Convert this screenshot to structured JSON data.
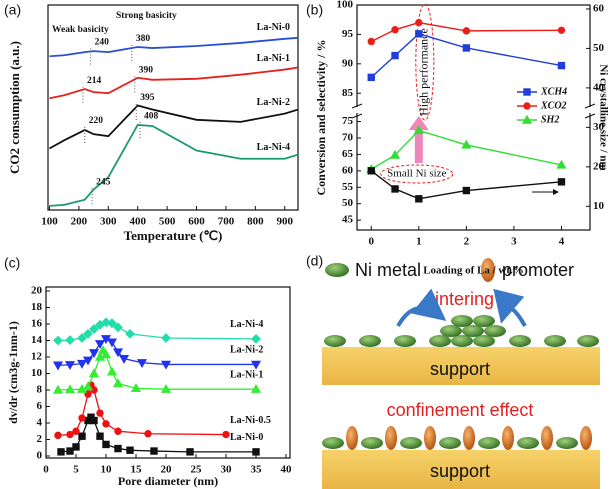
{
  "chart_data": [
    {
      "type": "line",
      "panel_label": "(a)",
      "xlabel": "Temperature (℃)",
      "ylabel": "CO2 consumption (a.u.)",
      "xlim": [
        95,
        945
      ],
      "xticks": [
        100,
        200,
        300,
        400,
        500,
        600,
        700,
        800,
        900
      ],
      "ylim": [
        0,
        10
      ],
      "x": [
        100,
        150,
        220,
        250,
        300,
        400,
        450,
        600,
        750,
        900,
        945
      ],
      "annotations": [
        "Weak basicity",
        "Strong basicity"
      ],
      "series": [
        {
          "name": "La-Ni-0",
          "color": "#2a4fd6",
          "values": [
            7.5,
            7.55,
            7.7,
            7.75,
            7.7,
            7.95,
            7.9,
            8.0,
            8.15,
            8.35,
            8.4
          ],
          "peaks": [
            240,
            380
          ]
        },
        {
          "name": "La-Ni-1",
          "color": "#e8201c",
          "values": [
            5.45,
            5.6,
            5.9,
            5.75,
            5.7,
            6.45,
            6.35,
            6.4,
            6.6,
            6.85,
            6.95
          ],
          "peaks": [
            214,
            390
          ]
        },
        {
          "name": "La-Ni-2",
          "color": "#111111",
          "values": [
            3.0,
            3.4,
            3.9,
            3.7,
            3.6,
            5.1,
            4.9,
            4.4,
            4.3,
            4.7,
            4.9
          ],
          "peaks": [
            220,
            395
          ]
        },
        {
          "name": "La-Ni-4",
          "color": "#1a9a6a",
          "values": [
            0.2,
            0.25,
            0.5,
            1.0,
            1.6,
            4.15,
            4.1,
            2.9,
            2.5,
            2.5,
            2.7
          ],
          "peaks": [
            245,
            408
          ]
        }
      ]
    },
    {
      "type": "line",
      "panel_label": "(b)",
      "xlabel": "Loading of La / wt.%",
      "ylabel": "Conversion and selectivity / %",
      "y2label": "Ni crystalline size / nm",
      "x": [
        0,
        0.5,
        1,
        2,
        4
      ],
      "xlim": [
        -0.3,
        4.6
      ],
      "xticks": [
        0,
        1,
        2,
        3,
        4
      ],
      "ylim": [
        42,
        100
      ],
      "y_break": [
        77,
        83
      ],
      "yticks": [
        45,
        50,
        55,
        60,
        65,
        70,
        75,
        85,
        90,
        95,
        100
      ],
      "y2lim": [
        4,
        61
      ],
      "y2ticks": [
        10,
        20,
        30,
        40,
        50,
        60
      ],
      "legend": "right",
      "annotations": [
        "High performance",
        "Small Ni size"
      ],
      "series": [
        {
          "name": "XCH4",
          "color": "#1f3fd8",
          "marker": "square",
          "values": [
            87.7,
            91.4,
            95.1,
            92.7,
            89.7
          ]
        },
        {
          "name": "XCO2",
          "color": "#e8201c",
          "marker": "circle",
          "values": [
            93.8,
            95.8,
            97.0,
            95.6,
            95.7
          ]
        },
        {
          "name": "SH2",
          "color": "#33dd33",
          "marker": "triangle",
          "values": [
            60.5,
            64.8,
            72.3,
            67.9,
            61.8
          ]
        },
        {
          "color": "#111111",
          "marker": "square",
          "axis": "y2",
          "values": [
            19,
            14.4,
            11.9,
            14,
            16.2
          ]
        }
      ]
    },
    {
      "type": "line",
      "panel_label": "(c)",
      "xlabel": "Pore diameter (nm)",
      "ylabel": "dv/dr (cm3g-1nm-1)",
      "xlim": [
        0,
        40
      ],
      "xticks": [
        0,
        5,
        10,
        15,
        20,
        25,
        30,
        35,
        40
      ],
      "ylim": [
        0,
        20
      ],
      "yticks": [
        0,
        2,
        4,
        6,
        8,
        10,
        12,
        14,
        16,
        18,
        20
      ],
      "series": [
        {
          "name": "La-Ni-0",
          "color": "#111111",
          "marker": "square",
          "x": [
            2.5,
            4,
            5,
            6,
            7,
            7.5,
            8,
            9,
            10,
            12,
            14,
            18,
            24,
            35
          ],
          "values": [
            0.5,
            0.6,
            1.1,
            2.4,
            4.3,
            4.7,
            4.3,
            2.4,
            1.4,
            0.9,
            0.7,
            0.6,
            0.5,
            0.5
          ]
        },
        {
          "name": "La-Ni-0.5",
          "color": "#ee1111",
          "marker": "circle",
          "x": [
            2,
            4,
            5,
            6,
            7,
            7.5,
            8,
            9,
            10,
            12,
            17,
            30
          ],
          "values": [
            2.5,
            2.6,
            3.0,
            4.6,
            7.5,
            8.6,
            8.0,
            5.2,
            3.9,
            3.0,
            2.7,
            2.6
          ]
        },
        {
          "name": "La-Ni-1",
          "color": "#33ee33",
          "marker": "triangle",
          "x": [
            2,
            4,
            6,
            7,
            8,
            9,
            9.5,
            10,
            11,
            12,
            15,
            20,
            35
          ],
          "values": [
            8,
            8.05,
            8.1,
            8.4,
            10,
            12,
            12.8,
            12.3,
            10.2,
            8.8,
            8.2,
            8.1,
            8.1
          ]
        },
        {
          "name": "La-Ni-2",
          "color": "#2233ee",
          "marker": "down-triangle",
          "x": [
            2,
            4,
            6,
            7,
            8,
            9,
            10,
            11,
            12,
            13,
            16,
            20,
            35
          ],
          "values": [
            11,
            11.05,
            11.2,
            11.6,
            12.5,
            13.6,
            14.2,
            13.8,
            12.6,
            11.8,
            11.3,
            11.1,
            11.1
          ]
        },
        {
          "name": "La-Ni-4",
          "color": "#22ddaa",
          "marker": "diamond",
          "x": [
            2,
            4,
            6,
            7,
            8,
            9,
            10,
            11,
            12,
            14,
            20,
            35
          ],
          "values": [
            14,
            14.05,
            14.3,
            14.8,
            15.4,
            15.9,
            16.2,
            16.1,
            15.6,
            14.8,
            14.3,
            14.2
          ]
        }
      ]
    }
  ],
  "diagram": {
    "panel_label": "(d)",
    "legend": {
      "ni": "Ni metal",
      "promoter": "promoter"
    },
    "top": {
      "title": "sintering",
      "support": "support"
    },
    "bottom": {
      "title": "confinement effect",
      "support": "support"
    }
  }
}
